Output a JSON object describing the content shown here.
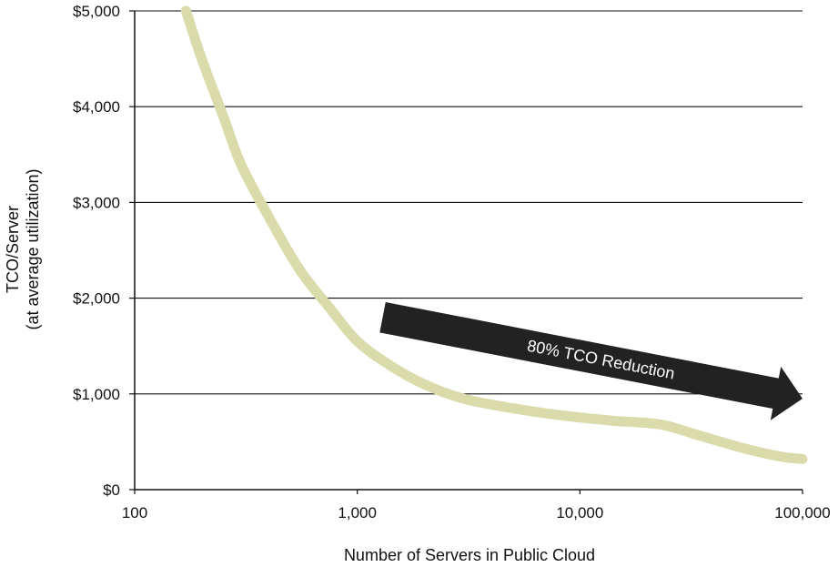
{
  "chart_data": {
    "type": "line",
    "xlabel": "Number of Servers in Public Cloud",
    "ylabel_lines": [
      "TCO/Server",
      "(at average utilization)"
    ],
    "x_scale": "log",
    "xlim": [
      100,
      100000
    ],
    "ylim": [
      0,
      5000
    ],
    "x_ticks": [
      {
        "value": 100,
        "label": "100"
      },
      {
        "value": 1000,
        "label": "1,000"
      },
      {
        "value": 10000,
        "label": "10,000"
      },
      {
        "value": 100000,
        "label": "100,000"
      }
    ],
    "y_ticks": [
      {
        "value": 0,
        "label": "$0"
      },
      {
        "value": 1000,
        "label": "$1,000"
      },
      {
        "value": 2000,
        "label": "$2,000"
      },
      {
        "value": 3000,
        "label": "$3,000"
      },
      {
        "value": 4000,
        "label": "$4,000"
      },
      {
        "value": 5000,
        "label": "$5,000"
      }
    ],
    "grid": "horizontal",
    "series": [
      {
        "color": "#d9dcaa",
        "points": [
          {
            "x": 170,
            "y": 5000
          },
          {
            "x": 200,
            "y": 4500
          },
          {
            "x": 250,
            "y": 3900
          },
          {
            "x": 300,
            "y": 3400
          },
          {
            "x": 400,
            "y": 2850
          },
          {
            "x": 550,
            "y": 2300
          },
          {
            "x": 750,
            "y": 1900
          },
          {
            "x": 1000,
            "y": 1550
          },
          {
            "x": 1400,
            "y": 1300
          },
          {
            "x": 2000,
            "y": 1100
          },
          {
            "x": 3000,
            "y": 950
          },
          {
            "x": 5000,
            "y": 850
          },
          {
            "x": 8000,
            "y": 780
          },
          {
            "x": 14000,
            "y": 720
          },
          {
            "x": 23000,
            "y": 680
          },
          {
            "x": 35000,
            "y": 560
          },
          {
            "x": 55000,
            "y": 430
          },
          {
            "x": 80000,
            "y": 345
          },
          {
            "x": 100000,
            "y": 320
          }
        ]
      }
    ],
    "annotation": {
      "text": "80% TCO Reduction",
      "color": "#222222",
      "start": {
        "x": 1300,
        "y": 1800
      },
      "end": {
        "x": 100000,
        "y": 950
      }
    }
  }
}
